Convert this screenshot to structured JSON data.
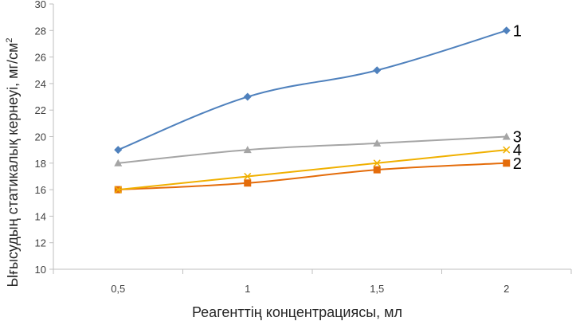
{
  "chart_data": {
    "type": "line",
    "title": "",
    "xlabel": "Реагенттің концентрациясы, мл",
    "ylabel": "Ығысудың статикалық кернеуі, мг/см",
    "ylabel_superscript": "2",
    "categories": [
      "0,5",
      "1",
      "1,5",
      "2"
    ],
    "ylim": [
      10,
      30
    ],
    "yticks": [
      10,
      12,
      14,
      16,
      18,
      20,
      22,
      24,
      26,
      28,
      30
    ],
    "grid": false,
    "legend": "none",
    "series": [
      {
        "name": "1",
        "values": [
          19,
          23,
          25,
          28
        ],
        "color": "#4f81bd",
        "marker": "diamond"
      },
      {
        "name": "2",
        "values": [
          16,
          16.5,
          17.5,
          18
        ],
        "color": "#e46c0a",
        "marker": "square"
      },
      {
        "name": "3",
        "values": [
          18,
          19,
          19.5,
          20
        ],
        "color": "#a5a5a5",
        "marker": "triangle"
      },
      {
        "name": "4",
        "values": [
          16,
          17,
          18,
          19
        ],
        "color": "#f0b000",
        "marker": "x"
      }
    ]
  }
}
